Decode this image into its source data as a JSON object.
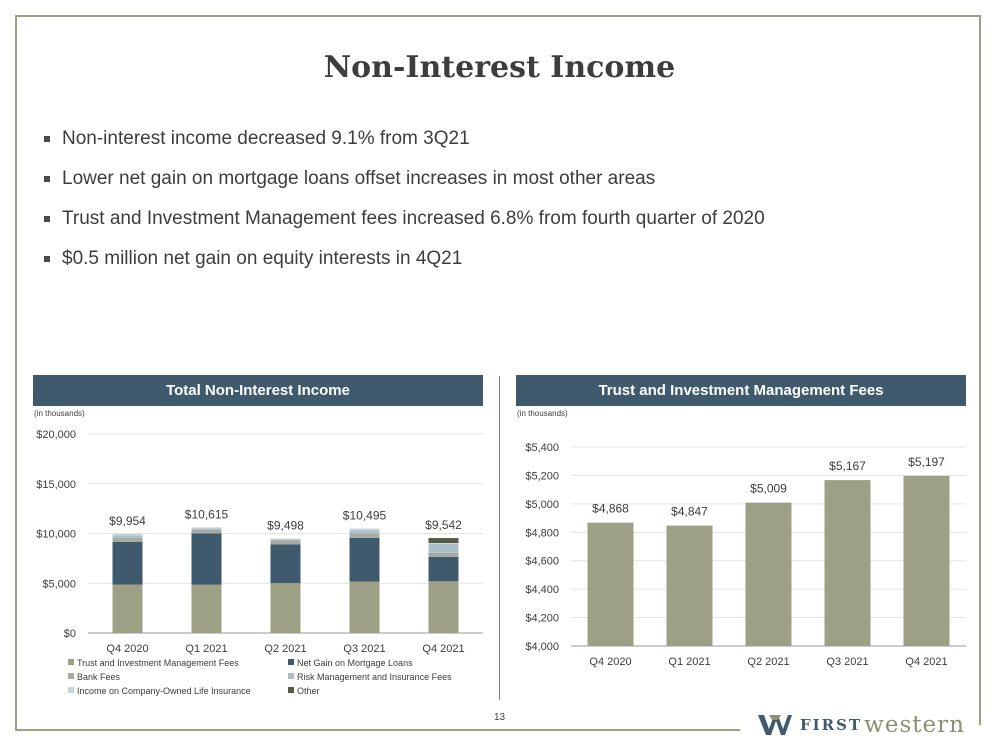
{
  "title": "Non-Interest Income",
  "bullets": [
    "Non-interest income decreased 9.1% from 3Q21",
    "Lower net gain on mortgage loans offset increases in most other areas",
    "Trust and Investment Management fees increased 6.8% from fourth quarter of 2020",
    "$0.5 million net gain on equity interests in 4Q21"
  ],
  "page_number": "13",
  "logo": {
    "first": "FIRST",
    "western": "western"
  },
  "colors": {
    "header": "#3f5a6c",
    "trust": "#9da085",
    "mortgage": "#3f5a6c",
    "bank_fees": "#a8aaa2",
    "risk": "#a9c0c9",
    "boli": "#c6d5db",
    "other": "#575a45"
  },
  "chart_data": [
    {
      "type": "bar",
      "stacked": true,
      "title": "Total Non-Interest Income",
      "units_note": "(in thousands)",
      "categories": [
        "Q4 2020",
        "Q1 2021",
        "Q2 2021",
        "Q3 2021",
        "Q4 2021"
      ],
      "ylim": [
        0,
        20000
      ],
      "yticks": [
        0,
        5000,
        10000,
        15000,
        20000
      ],
      "ytick_labels": [
        "$0",
        "$5,000",
        "$10,000",
        "$15,000",
        "$20,000"
      ],
      "totals": [
        "$9,954",
        "$10,615",
        "$9,498",
        "$10,495",
        "$9,542"
      ],
      "total_values": [
        9954,
        10615,
        9498,
        10495,
        9542
      ],
      "series": [
        {
          "name": "Trust and Investment Management Fees",
          "color_key": "trust",
          "values": [
            4868,
            4847,
            5009,
            5167,
            5197
          ]
        },
        {
          "name": "Net Gain on Mortgage Loans",
          "color_key": "mortgage",
          "values": [
            4300,
            5150,
            3900,
            4400,
            2450
          ]
        },
        {
          "name": "Bank Fees",
          "color_key": "bank_fees",
          "values": [
            400,
            390,
            390,
            420,
            420
          ]
        },
        {
          "name": "Risk Management and Insurance Fees",
          "color_key": "risk",
          "values": [
            240,
            130,
            110,
            340,
            890
          ]
        },
        {
          "name": "Income on Company-Owned Life Insurance",
          "color_key": "boli",
          "values": [
            146,
            98,
            89,
            168,
            85
          ]
        },
        {
          "name": "Other",
          "color_key": "other",
          "values": [
            0,
            0,
            0,
            0,
            500
          ]
        }
      ],
      "legend_position": "bottom",
      "grid": true
    },
    {
      "type": "bar",
      "title": "Trust and Investment Management Fees",
      "units_note": "(in thousands)",
      "categories": [
        "Q4 2020",
        "Q1 2021",
        "Q2 2021",
        "Q3 2021",
        "Q4 2021"
      ],
      "values": [
        4868,
        4847,
        5009,
        5167,
        5197
      ],
      "data_labels": [
        "$4,868",
        "$4,847",
        "$5,009",
        "$5,167",
        "$5,197"
      ],
      "ylim": [
        4000,
        5400
      ],
      "yticks": [
        4000,
        4200,
        4400,
        4600,
        4800,
        5000,
        5200,
        5400
      ],
      "ytick_labels": [
        "$4,000",
        "$4,200",
        "$4,400",
        "$4,600",
        "$4,800",
        "$5,000",
        "$5,200",
        "$5,400"
      ],
      "grid": true
    }
  ]
}
